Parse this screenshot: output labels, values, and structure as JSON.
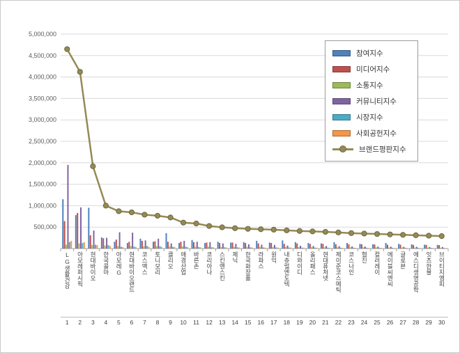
{
  "chart_data": {
    "type": "bar",
    "title": "",
    "categories": [
      "LG생활건강",
      "아모레퍼시픽",
      "현대바이오",
      "한국콜마",
      "아모레G",
      "현대바이오랜드",
      "코스맥스",
      "토니모리",
      "클리오",
      "애경산업",
      "바른손",
      "코리아나",
      "스킨앤스킨",
      "제닉",
      "한국화장품",
      "라파스",
      "원익",
      "내츄럴엔도텍",
      "디와이디",
      "올리패스",
      "현대퓨처넷",
      "제이준코스메틱",
      "코스나인",
      "협진",
      "컬러레이",
      "에이블씨엔씨",
      "글로본",
      "에스디생명공학",
      "잇츠한불",
      "브이티지엠피"
    ],
    "ranks": [
      1,
      2,
      3,
      4,
      5,
      6,
      7,
      8,
      9,
      10,
      11,
      12,
      13,
      14,
      15,
      16,
      17,
      18,
      19,
      20,
      21,
      22,
      23,
      24,
      25,
      26,
      27,
      28,
      29,
      30
    ],
    "series": [
      {
        "name": "참여지수",
        "kind": "bar",
        "color": "#4F81BD",
        "values": [
          1150000,
          780000,
          950000,
          260000,
          160000,
          130000,
          230000,
          160000,
          360000,
          130000,
          200000,
          130000,
          160000,
          140000,
          150000,
          180000,
          140000,
          190000,
          150000,
          130000,
          120000,
          150000,
          130000,
          110000,
          100000,
          130000,
          110000,
          100000,
          90000,
          85000
        ]
      },
      {
        "name": "미디어지수",
        "kind": "bar",
        "color": "#C0504D",
        "values": [
          640000,
          830000,
          310000,
          240000,
          210000,
          160000,
          180000,
          170000,
          160000,
          160000,
          150000,
          140000,
          130000,
          140000,
          130000,
          120000,
          130000,
          110000,
          120000,
          110000,
          110000,
          100000,
          100000,
          100000,
          95000,
          90000,
          90000,
          85000,
          85000,
          80000
        ]
      },
      {
        "name": "소통지수",
        "kind": "bar",
        "color": "#9BBB59",
        "values": [
          90000,
          120000,
          80000,
          70000,
          60000,
          60000,
          55000,
          55000,
          50000,
          50000,
          45000,
          45000,
          40000,
          40000,
          40000,
          38000,
          36000,
          35000,
          33000,
          32000,
          30000,
          30000,
          28000,
          27000,
          26000,
          25000,
          24000,
          23000,
          22000,
          20000
        ]
      },
      {
        "name": "커뮤니티지수",
        "kind": "bar",
        "color": "#8064A2",
        "values": [
          1950000,
          960000,
          420000,
          250000,
          380000,
          370000,
          190000,
          230000,
          120000,
          180000,
          160000,
          150000,
          120000,
          110000,
          100000,
          90000,
          85000,
          70000,
          65000,
          60000,
          60000,
          55000,
          50000,
          48000,
          46000,
          44000,
          42000,
          40000,
          38000,
          36000
        ]
      },
      {
        "name": "시장지수",
        "kind": "bar",
        "color": "#4BACC6",
        "values": [
          150000,
          130000,
          90000,
          80000,
          40000,
          45000,
          60000,
          55000,
          40000,
          45000,
          35000,
          30000,
          30000,
          28000,
          28000,
          26000,
          25000,
          24000,
          23000,
          22000,
          21000,
          20000,
          20000,
          19000,
          18000,
          18000,
          17000,
          16000,
          16000,
          15000
        ]
      },
      {
        "name": "사회공헌지수",
        "kind": "bar",
        "color": "#F79646",
        "values": [
          180000,
          150000,
          80000,
          60000,
          35000,
          35000,
          40000,
          38000,
          35000,
          33000,
          30000,
          28000,
          26000,
          25000,
          24000,
          23000,
          22000,
          21000,
          20000,
          19000,
          18000,
          17000,
          16000,
          15000,
          15000,
          14000,
          14000,
          13000,
          13000,
          12000
        ]
      },
      {
        "name": "브랜드평판지수",
        "kind": "line",
        "color": "#948A54",
        "values": [
          4650000,
          4120000,
          1920000,
          1000000,
          870000,
          845000,
          790000,
          765000,
          725000,
          605000,
          585000,
          525000,
          495000,
          475000,
          460000,
          450000,
          440000,
          425000,
          410000,
          400000,
          390000,
          375000,
          360000,
          350000,
          340000,
          330000,
          320000,
          310000,
          300000,
          290000
        ]
      }
    ],
    "ylim": [
      0,
      5000000
    ],
    "ytick_step": 500000,
    "y_tick_labels": [
      "500,000",
      "1,000,000",
      "1,500,000",
      "2,000,000",
      "2,500,000",
      "3,000,000",
      "3,500,000",
      "4,000,000",
      "4,500,000",
      "5,000,000"
    ],
    "grid": true,
    "legend_position": "top-right"
  }
}
